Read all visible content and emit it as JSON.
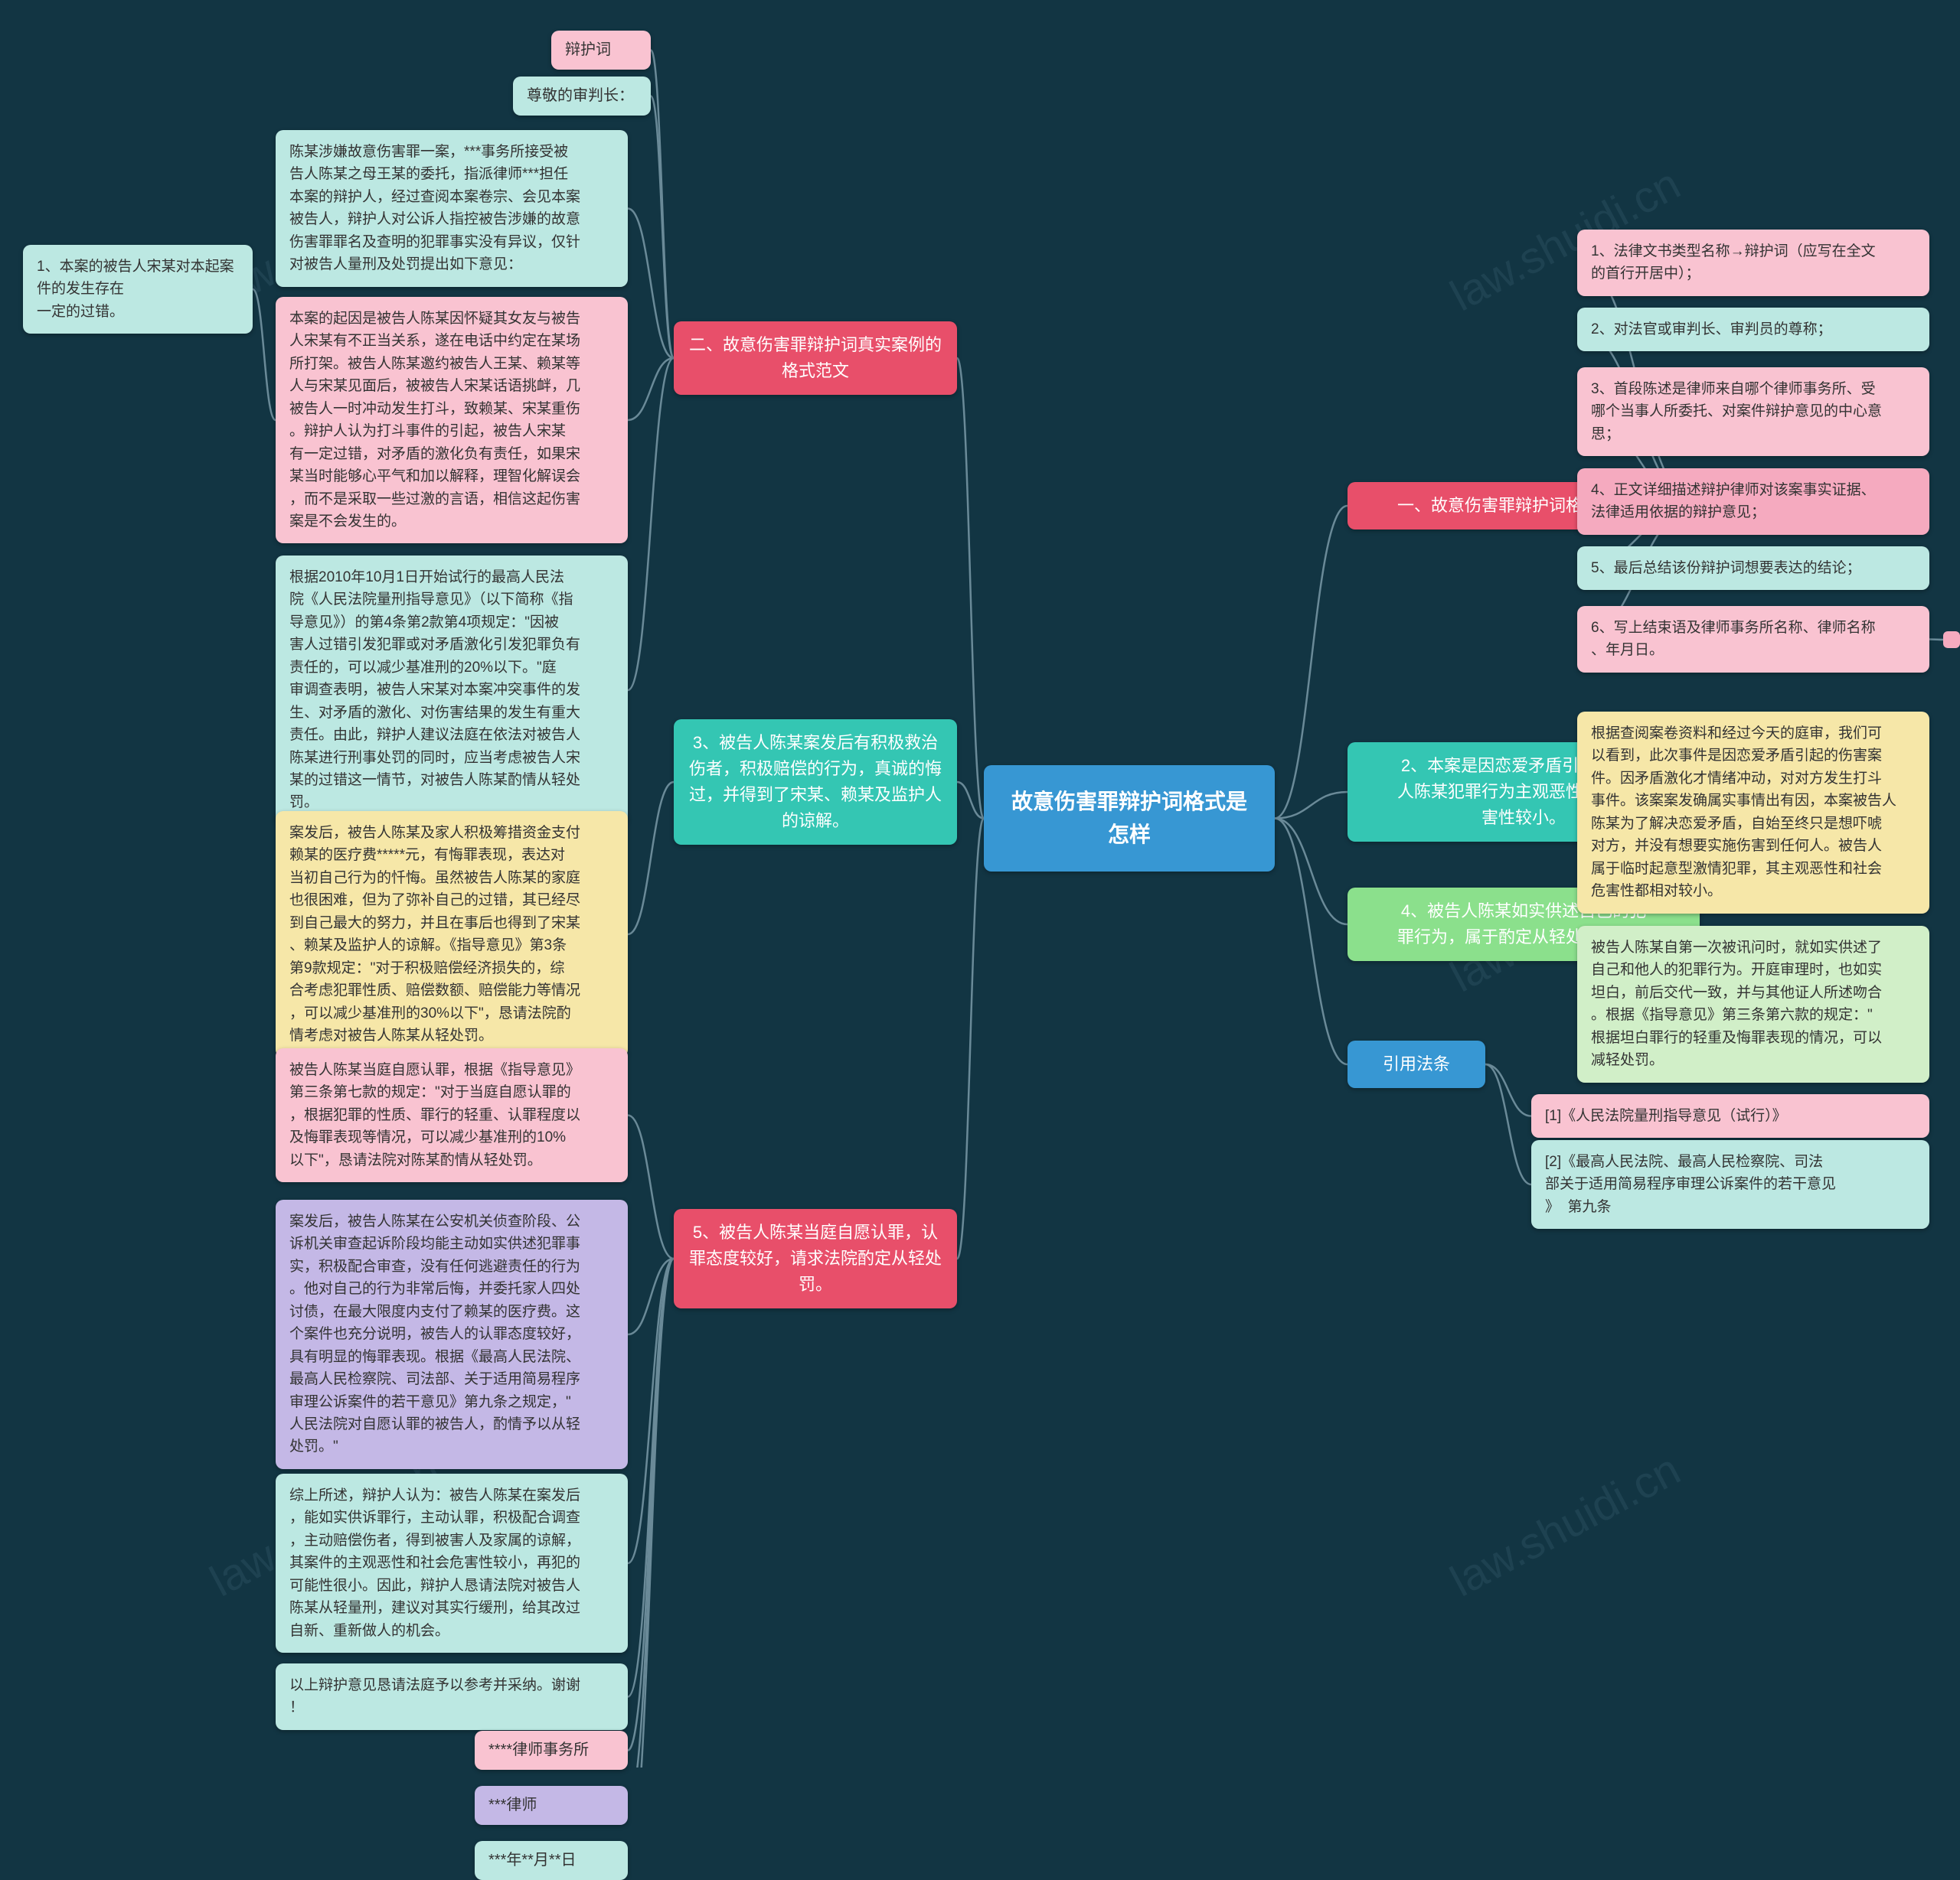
{
  "colors": {
    "bg": "#123543",
    "center": "#3797d3",
    "red": "#e84f6a",
    "teal": "#34c6b3",
    "green": "#8be08c",
    "pink": "#f9c3d1",
    "yellow": "#f6e7a8",
    "pink2": "#f5aabf",
    "tealLt": "#bce8e2",
    "purple": "#c4b8e6",
    "greenLt": "#d1efc8",
    "white": "#fff",
    "text": "#333",
    "line": "#6a8a98"
  },
  "center": {
    "text": "故意伤害罪辩护词格式是\n怎样"
  },
  "catR1": {
    "text": "一、故意伤害罪辩护词格式是怎样",
    "bg": "red"
  },
  "catR2": {
    "text": "2、本案是因恋爱矛盾引起，被告\n人陈某犯罪行为主观恶性和社会危\n害性较小。",
    "bg": "teal"
  },
  "catR3": {
    "text": "4、被告人陈某如实供述自己的犯\n罪行为，属于酌定从轻处罚情节。",
    "bg": "green"
  },
  "catR4": {
    "text": "引用法条",
    "bg": "center"
  },
  "catL1": {
    "text": "二、故意伤害罪辩护词真实案例的\n格式范文",
    "bg": "red"
  },
  "catL2": {
    "text": "3、被告人陈某案发后有积极救治\n伤者，积极赔偿的行为，真诚的悔\n过，并得到了宋某、赖某及监护人\n的谅解。",
    "bg": "teal"
  },
  "catL3": {
    "text": "5、被告人陈某当庭自愿认罪，认\n罪态度较好，请求法院酌定从轻处\n罚。",
    "bg": "red"
  },
  "r1": [
    {
      "text": "1、法律文书类型名称→辩护词（应写在全文\n的首行开居中）；",
      "bg": "pink"
    },
    {
      "text": "2、对法官或审判长、审判员的尊称；",
      "bg": "tealLt"
    },
    {
      "text": "3、首段陈述是律师来自哪个律师事务所、受\n哪个当事人所委托、对案件辩护意见的中心意\n思；",
      "bg": "pink"
    },
    {
      "text": "4、正文详细描述辩护律师对该案事实证据、\n法律适用依据的辩护意见；",
      "bg": "pink2"
    },
    {
      "text": "5、最后总结该份辩护词想要表达的结论；",
      "bg": "tealLt"
    },
    {
      "text": "6、写上结束语及律师事务所名称、律师名称\n、年月日。",
      "bg": "pink"
    }
  ],
  "r2": [
    {
      "text": "根据查阅案卷资料和经过今天的庭审，我们可\n以看到，此次事件是因恋爱矛盾引起的伤害案\n件。因矛盾激化才情绪冲动，对对方发生打斗\n事件。该案案发确属实事情出有因，本案被告人\n陈某为了解决恋爱矛盾，自始至终只是想吓唬\n对方，并没有想要实施伤害到任何人。被告人\n属于临时起意型激情犯罪，其主观恶性和社会\n危害性都相对较小。",
      "bg": "yellow"
    }
  ],
  "r3": [
    {
      "text": "被告人陈某自第一次被讯问时，就如实供述了\n自己和他人的犯罪行为。开庭审理时，也如实\n坦白，前后交代一致，并与其他证人所述吻合\n。根据《指导意见》第三条第六款的规定：\"\n根据坦白罪行的轻重及悔罪表现的情况，可以\n减轻处罚。",
      "bg": "greenLt"
    }
  ],
  "r4": [
    {
      "text": "[1]《人民法院量刑指导意见（试行）》",
      "bg": "pink"
    },
    {
      "text": "[2]《最高人民法院、最高人民检察院、司法\n部关于适用简易程序审理公诉案件的若干意见\n》  第九条",
      "bg": "tealLt"
    }
  ],
  "l1top": [
    {
      "text": "辩护词",
      "bg": "pink"
    },
    {
      "text": "尊敬的审判长：",
      "bg": "tealLt"
    }
  ],
  "l1": [
    {
      "text": "陈某涉嫌故意伤害罪一案，***事务所接受被\n告人陈某之母王某的委托，指派律师***担任\n本案的辩护人，经过查阅本案卷宗、会见本案\n被告人，辩护人对公诉人指控被告涉嫌的故意\n伤害罪罪名及查明的犯罪事实没有异议，仅针\n对被告人量刑及处罚提出如下意见：",
      "bg": "tealLt"
    },
    {
      "text": "本案的起因是被告人陈某因怀疑其女友与被告\n人宋某有不正当关系，遂在电话中约定在某场\n所打架。被告人陈某邀约被告人王某、赖某等\n人与宋某见面后，被被告人宋某话语挑衅，几\n被告人一时冲动发生打斗，致赖某、宋某重伤\n。辩护人认为打斗事件的引起，被告人宋某\n有一定过错，对矛盾的激化负有责任，如果宋\n某当时能够心平气和加以解释，理智化解误会\n，而不是采取一些过激的言语，相信这起伤害\n案是不会发生的。",
      "bg": "pink"
    },
    {
      "text": "根据2010年10月1日开始试行的最高人民法\n院《人民法院量刑指导意见》（以下简称《指\n导意见》）的第4条第2款第4项规定：\"因被\n害人过错引发犯罪或对矛盾激化引发犯罪负有\n责任的，可以减少基准刑的20%以下。\"庭\n审调查表明，被告人宋某对本案冲突事件的发\n生、对矛盾的激化、对伤害结果的发生有重大\n责任。由此，辩护人建议法庭在依法对被告人\n陈某进行刑事处罚的同时，应当考虑被告人宋\n某的过错这一情节，对被告人陈某酌情从轻处\n罚。",
      "bg": "tealLt"
    }
  ],
  "l1side": {
    "text": "1、本案的被告人宋某对本起案件的发生存在\n一定的过错。",
    "bg": "tealLt"
  },
  "l2": [
    {
      "text": "案发后，被告人陈某及家人积极筹措资金支付\n赖某的医疗费*****元，有悔罪表现，表达对\n当初自己行为的忏悔。虽然被告人陈某的家庭\n也很困难，但为了弥补自己的过错，其已经尽\n到自己最大的努力，并且在事后也得到了宋某\n、赖某及监护人的谅解。《指导意见》第3条\n第9款规定：\"对于积极赔偿经济损失的，综\n合考虑犯罪性质、赔偿数额、赔偿能力等情况\n，可以减少基准刑的30%以下\"，恳请法院酌\n情考虑对被告人陈某从轻处罚。",
      "bg": "yellow"
    }
  ],
  "l3": [
    {
      "text": "被告人陈某当庭自愿认罪，根据《指导意见》\n第三条第七款的规定：\"对于当庭自愿认罪的\n，根据犯罪的性质、罪行的轻重、认罪程度以\n及悔罪表现等情况，可以减少基准刑的10%\n以下\"，恳请法院对陈某酌情从轻处罚。",
      "bg": "pink"
    },
    {
      "text": "案发后，被告人陈某在公安机关侦查阶段、公\n诉机关审查起诉阶段均能主动如实供述犯罪事\n实，积极配合审查，没有任何逃避责任的行为\n。他对自己的行为非常后悔，并委托家人四处\n讨债，在最大限度内支付了赖某的医疗费。这\n个案件也充分说明，被告人的认罪态度较好，\n具有明显的悔罪表现。根据《最高人民法院、\n最高人民检察院、司法部、关于适用简易程序\n审理公诉案件的若干意见》第九条之规定，\"\n人民法院对自愿认罪的被告人，酌情予以从轻\n处罚。\"",
      "bg": "purple"
    },
    {
      "text": "综上所述，辩护人认为：被告人陈某在案发后\n，能如实供诉罪行，主动认罪，积极配合调查\n，主动赔偿伤者，得到被害人及家属的谅解，\n其案件的主观恶性和社会危害性较小，再犯的\n可能性很小。因此，辩护人恳请法院对被告人\n陈某从轻量刑，建议对其实行缓刑，给其改过\n自新、重新做人的机会。",
      "bg": "tealLt"
    },
    {
      "text": "以上辩护意见恳请法庭予以参考并采纳。谢谢\n！",
      "bg": "tealLt"
    },
    {
      "text": "****律师事务所",
      "bg": "pink"
    },
    {
      "text": "***律师",
      "bg": "purple"
    },
    {
      "text": "***年**月**日",
      "bg": "tealLt"
    }
  ],
  "watermark": "law.shuidi.cn"
}
